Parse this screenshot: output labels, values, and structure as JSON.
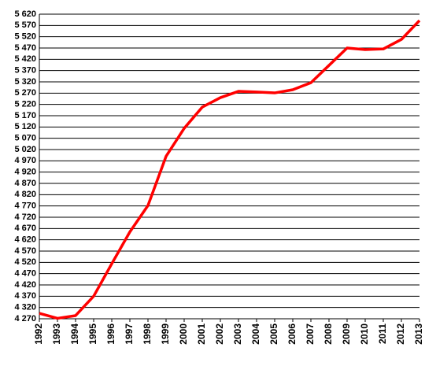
{
  "chart_data": {
    "type": "line",
    "categories": [
      "1992",
      "1993",
      "1994",
      "1995",
      "1996",
      "1997",
      "1998",
      "1999",
      "2000",
      "2001",
      "2002",
      "2003",
      "2004",
      "2005",
      "2006",
      "2007",
      "2008",
      "2009",
      "2010",
      "2011",
      "2012",
      "2013"
    ],
    "series": [
      {
        "color": "#ff0000",
        "values": [
          4294,
          4272,
          4284,
          4370,
          4514,
          4655,
          4772,
          4990,
          5114,
          5208,
          5250,
          5278,
          5275,
          5271,
          5285,
          5316,
          5393,
          5470,
          5463,
          5466,
          5508,
          5592
        ]
      }
    ],
    "ylim": [
      4270,
      5620
    ],
    "yticks": [
      {
        "value": 4270,
        "label": "4 270"
      },
      {
        "value": 4320,
        "label": "4 320"
      },
      {
        "value": 4370,
        "label": "4 370"
      },
      {
        "value": 4420,
        "label": "4 420"
      },
      {
        "value": 4470,
        "label": "4 470"
      },
      {
        "value": 4520,
        "label": "4 520"
      },
      {
        "value": 4570,
        "label": "4 570"
      },
      {
        "value": 4620,
        "label": "4 620"
      },
      {
        "value": 4670,
        "label": "4 670"
      },
      {
        "value": 4720,
        "label": "4 720"
      },
      {
        "value": 4770,
        "label": "4 770"
      },
      {
        "value": 4820,
        "label": "4 820"
      },
      {
        "value": 4870,
        "label": "4 870"
      },
      {
        "value": 4920,
        "label": "4 920"
      },
      {
        "value": 4970,
        "label": "4 970"
      },
      {
        "value": 5020,
        "label": "5 020"
      },
      {
        "value": 5070,
        "label": "5 070"
      },
      {
        "value": 5120,
        "label": "5 120"
      },
      {
        "value": 5170,
        "label": "5 170"
      },
      {
        "value": 5220,
        "label": "5 220"
      },
      {
        "value": 5270,
        "label": "5 270"
      },
      {
        "value": 5320,
        "label": "5 320"
      },
      {
        "value": 5370,
        "label": "5 370"
      },
      {
        "value": 5420,
        "label": "5 420"
      },
      {
        "value": 5470,
        "label": "5 470"
      },
      {
        "value": 5520,
        "label": "5 520"
      },
      {
        "value": 5570,
        "label": "5 570"
      },
      {
        "value": 5620,
        "label": "5 620"
      }
    ],
    "grid": true
  }
}
